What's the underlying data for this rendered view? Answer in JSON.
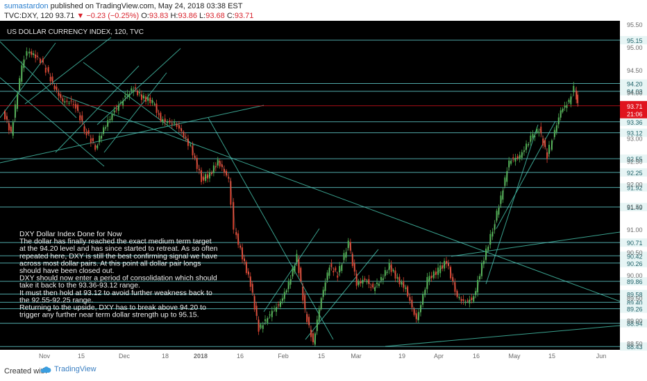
{
  "header": {
    "author": "sumastardon",
    "published_text": "published on TradingView.com, May 24, 2018 03:38 EST",
    "symbol": "TVC:DXY, 120",
    "last": "93.71",
    "change": "▼ −0.23 (−0.25%)",
    "open_label": "O:",
    "open": "93.83",
    "high_label": "H:",
    "high": "93.86",
    "low_label": "L:",
    "low": "93.68",
    "close_label": "C:",
    "close": "93.71"
  },
  "chart_title": "US DOLLAR CURRENCY INDEX, 120, TVC",
  "annotation_lines": [
    "DXY  Dollar Index  Done for Now",
    "The dollar has finally reached the exact medium term target",
    "at the 94.20 level and has since started to retreat. As so often",
    "repeated here, DXY is still the best confirming signal we have",
    "across most dollar pairs. At this point all dollar pair longs",
    "should have been closed out.",
    "DXY should now enter a period of consolidation which should",
    "take it back to the 93.36-93.12 range.",
    "It must then hold at 93.12 to avoid further weakness back to",
    "the 92.55-92.25 range.",
    "Returning to the upside, DXY has to break above 94.20 to",
    "trigger any further near term dollar strength up to 95.15."
  ],
  "price_tag": {
    "value": "93.71",
    "time": "21:06"
  },
  "footer": {
    "created_with": "Created with",
    "brand": "TradingView"
  },
  "colors": {
    "background": "#000000",
    "level_line": "#5fc6c6",
    "trend_line": "#3aa28f",
    "candle_up": "#4caf50",
    "candle_down": "#d9422f",
    "price_tag": "#e0141e"
  },
  "chart_data": {
    "type": "line",
    "ylim": [
      87.8,
      95.6
    ],
    "grid": false,
    "x_ticks": [
      "Nov",
      "15",
      "Dec",
      "18",
      "2018",
      "16",
      "Feb",
      "15",
      "Mar",
      "19",
      "Apr",
      "16",
      "May",
      "15",
      "Jun"
    ],
    "y_ticks": [
      "95.50",
      "95.00",
      "94.50",
      "94.00",
      "93.50",
      "93.00",
      "92.50",
      "92.00",
      "91.50",
      "91.00",
      "90.50",
      "90.00",
      "89.50",
      "89.00",
      "88.50",
      "88.00"
    ],
    "level_labels": [
      "95.15",
      "94.20",
      "94.03",
      "93.36",
      "93.12",
      "92.55",
      "92.25",
      "91.92",
      "91.49",
      "90.71",
      "90.42",
      "90.26",
      "89.86",
      "89.58",
      "89.40",
      "89.26",
      "88.94",
      "88.43"
    ],
    "price_path": [
      [
        "Oct 25",
        93.6
      ],
      [
        "Oct 28",
        93.1
      ],
      [
        "Nov 1",
        94.6
      ],
      [
        "Nov 3",
        94.9
      ],
      [
        "Nov 6",
        94.8
      ],
      [
        "Nov 8",
        94.7
      ],
      [
        "Nov 10",
        94.5
      ],
      [
        "Nov 13",
        94.1
      ],
      [
        "Nov 16",
        93.8
      ],
      [
        "Nov 20",
        93.8
      ],
      [
        "Nov 24",
        93.2
      ],
      [
        "Nov 28",
        92.8
      ],
      [
        "Dec 1",
        93.2
      ],
      [
        "Dec 5",
        93.6
      ],
      [
        "Dec 9",
        93.9
      ],
      [
        "Dec 12",
        94.1
      ],
      [
        "Dec 15",
        93.9
      ],
      [
        "Dec 19",
        93.8
      ],
      [
        "Dec 22",
        93.4
      ],
      [
        "Dec 28",
        93.3
      ],
      [
        "Jan 2",
        92.8
      ],
      [
        "Jan 6",
        92.1
      ],
      [
        "Jan 9",
        92.2
      ],
      [
        "Jan 12",
        92.5
      ],
      [
        "Jan 16",
        92.1
      ],
      [
        "Jan 18",
        91.0
      ],
      [
        "Jan 21",
        90.4
      ],
      [
        "Jan 24",
        89.8
      ],
      [
        "Jan 27",
        88.8
      ],
      [
        "Feb 1",
        89.2
      ],
      [
        "Feb 4",
        89.4
      ],
      [
        "Feb 7",
        89.8
      ],
      [
        "Feb 10",
        90.4
      ],
      [
        "Feb 13",
        89.2
      ],
      [
        "Feb 16",
        88.5
      ],
      [
        "Feb 19",
        89.5
      ],
      [
        "Feb 22",
        90.2
      ],
      [
        "Feb 25",
        90.0
      ],
      [
        "Mar 1",
        90.7
      ],
      [
        "Mar 4",
        89.8
      ],
      [
        "Mar 7",
        89.9
      ],
      [
        "Mar 10",
        89.7
      ],
      [
        "Mar 13",
        89.9
      ],
      [
        "Mar 16",
        90.2
      ],
      [
        "Mar 19",
        89.9
      ],
      [
        "Mar 22",
        89.7
      ],
      [
        "Mar 26",
        89.0
      ],
      [
        "Mar 30",
        89.9
      ],
      [
        "Apr 3",
        90.1
      ],
      [
        "Apr 6",
        90.3
      ],
      [
        "Apr 10",
        89.5
      ],
      [
        "Apr 13",
        89.4
      ],
      [
        "Apr 16",
        89.5
      ],
      [
        "Apr 19",
        90.2
      ],
      [
        "Apr 23",
        91.0
      ],
      [
        "Apr 26",
        91.7
      ],
      [
        "Apr 29",
        92.5
      ],
      [
        "May 3",
        92.6
      ],
      [
        "May 7",
        93.0
      ],
      [
        "May 10",
        93.2
      ],
      [
        "May 13",
        92.6
      ],
      [
        "May 15",
        93.0
      ],
      [
        "May 18",
        93.6
      ],
      [
        "May 21",
        93.8
      ],
      [
        "May 23",
        94.1
      ],
      [
        "May 24",
        93.71
      ]
    ]
  }
}
